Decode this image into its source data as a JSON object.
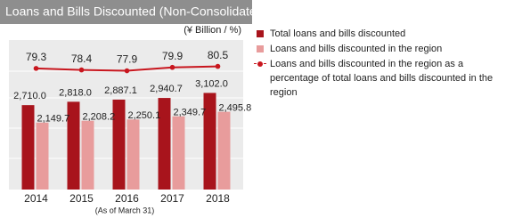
{
  "chart_data": {
    "type": "bar-line",
    "title": "Loans and Bills Discounted (Non-Consolidated)",
    "unit_label": "(¥ Billion / %)",
    "note": "(As of March 31)",
    "categories": [
      "2014",
      "2015",
      "2016",
      "2017",
      "2018"
    ],
    "ylim": [
      0,
      4800
    ],
    "y2lim": [
      8,
      96
    ],
    "series": [
      {
        "name": "Total loans and bills discounted",
        "color": "#a8141c",
        "type": "bar",
        "values": [
          2710.0,
          2818.0,
          2887.1,
          2940.7,
          3102.0
        ],
        "value_labels": [
          "2,710.0",
          "2,818.0",
          "2,887.1",
          "2,940.7",
          "3,102.0"
        ]
      },
      {
        "name": "Loans and bills discounted in  the region",
        "color": "#e89c9c",
        "type": "bar",
        "values": [
          2149.7,
          2208.2,
          2250.1,
          2349.7,
          2495.8
        ],
        "value_labels": [
          "2,149.7",
          "2,208.2",
          "2,250.1",
          "2,349.7",
          "2,495.8"
        ]
      },
      {
        "name": "Loans and bills discounted in the region as a percentage of total loans and bills discounted in the region",
        "color": "#c8161e",
        "type": "line",
        "axis": "y2",
        "values": [
          79.3,
          78.4,
          77.9,
          79.9,
          80.5
        ]
      }
    ]
  }
}
